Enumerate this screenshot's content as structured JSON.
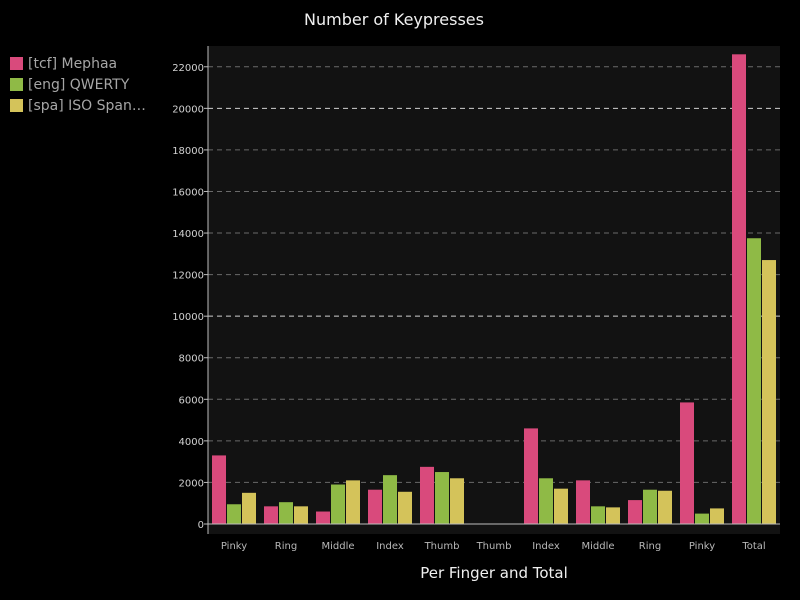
{
  "chart_data": {
    "type": "bar",
    "title": "Number of Keypresses",
    "xlabel": "Per Finger and Total",
    "ylabel": "",
    "categories": [
      "Pinky",
      "Ring",
      "Middle",
      "Index",
      "Thumb",
      "Thumb",
      "Index",
      "Middle",
      "Ring",
      "Pinky",
      "Total"
    ],
    "series": [
      {
        "name": "[tcf] Mephaa",
        "color": "#d94a7c",
        "values": [
          3300,
          850,
          600,
          1650,
          2750,
          0,
          4600,
          2100,
          1150,
          5850,
          22600
        ]
      },
      {
        "name": "[eng] QWERTY",
        "color": "#8fba46",
        "values": [
          950,
          1050,
          1900,
          2350,
          2500,
          0,
          2200,
          850,
          1650,
          500,
          13750
        ]
      },
      {
        "name": "[spa] ISO Span…",
        "color": "#d4c35a",
        "values": [
          1500,
          850,
          2100,
          1550,
          2200,
          0,
          1700,
          800,
          1600,
          750,
          12700
        ]
      }
    ],
    "yticks": [
      "0",
      "2000",
      "4000",
      "6000",
      "8000",
      "10000",
      "12000",
      "14000",
      "16000",
      "18000",
      "20000",
      "22000"
    ],
    "ylim": [
      0,
      23000
    ],
    "grid": true,
    "legend": "top-left"
  }
}
